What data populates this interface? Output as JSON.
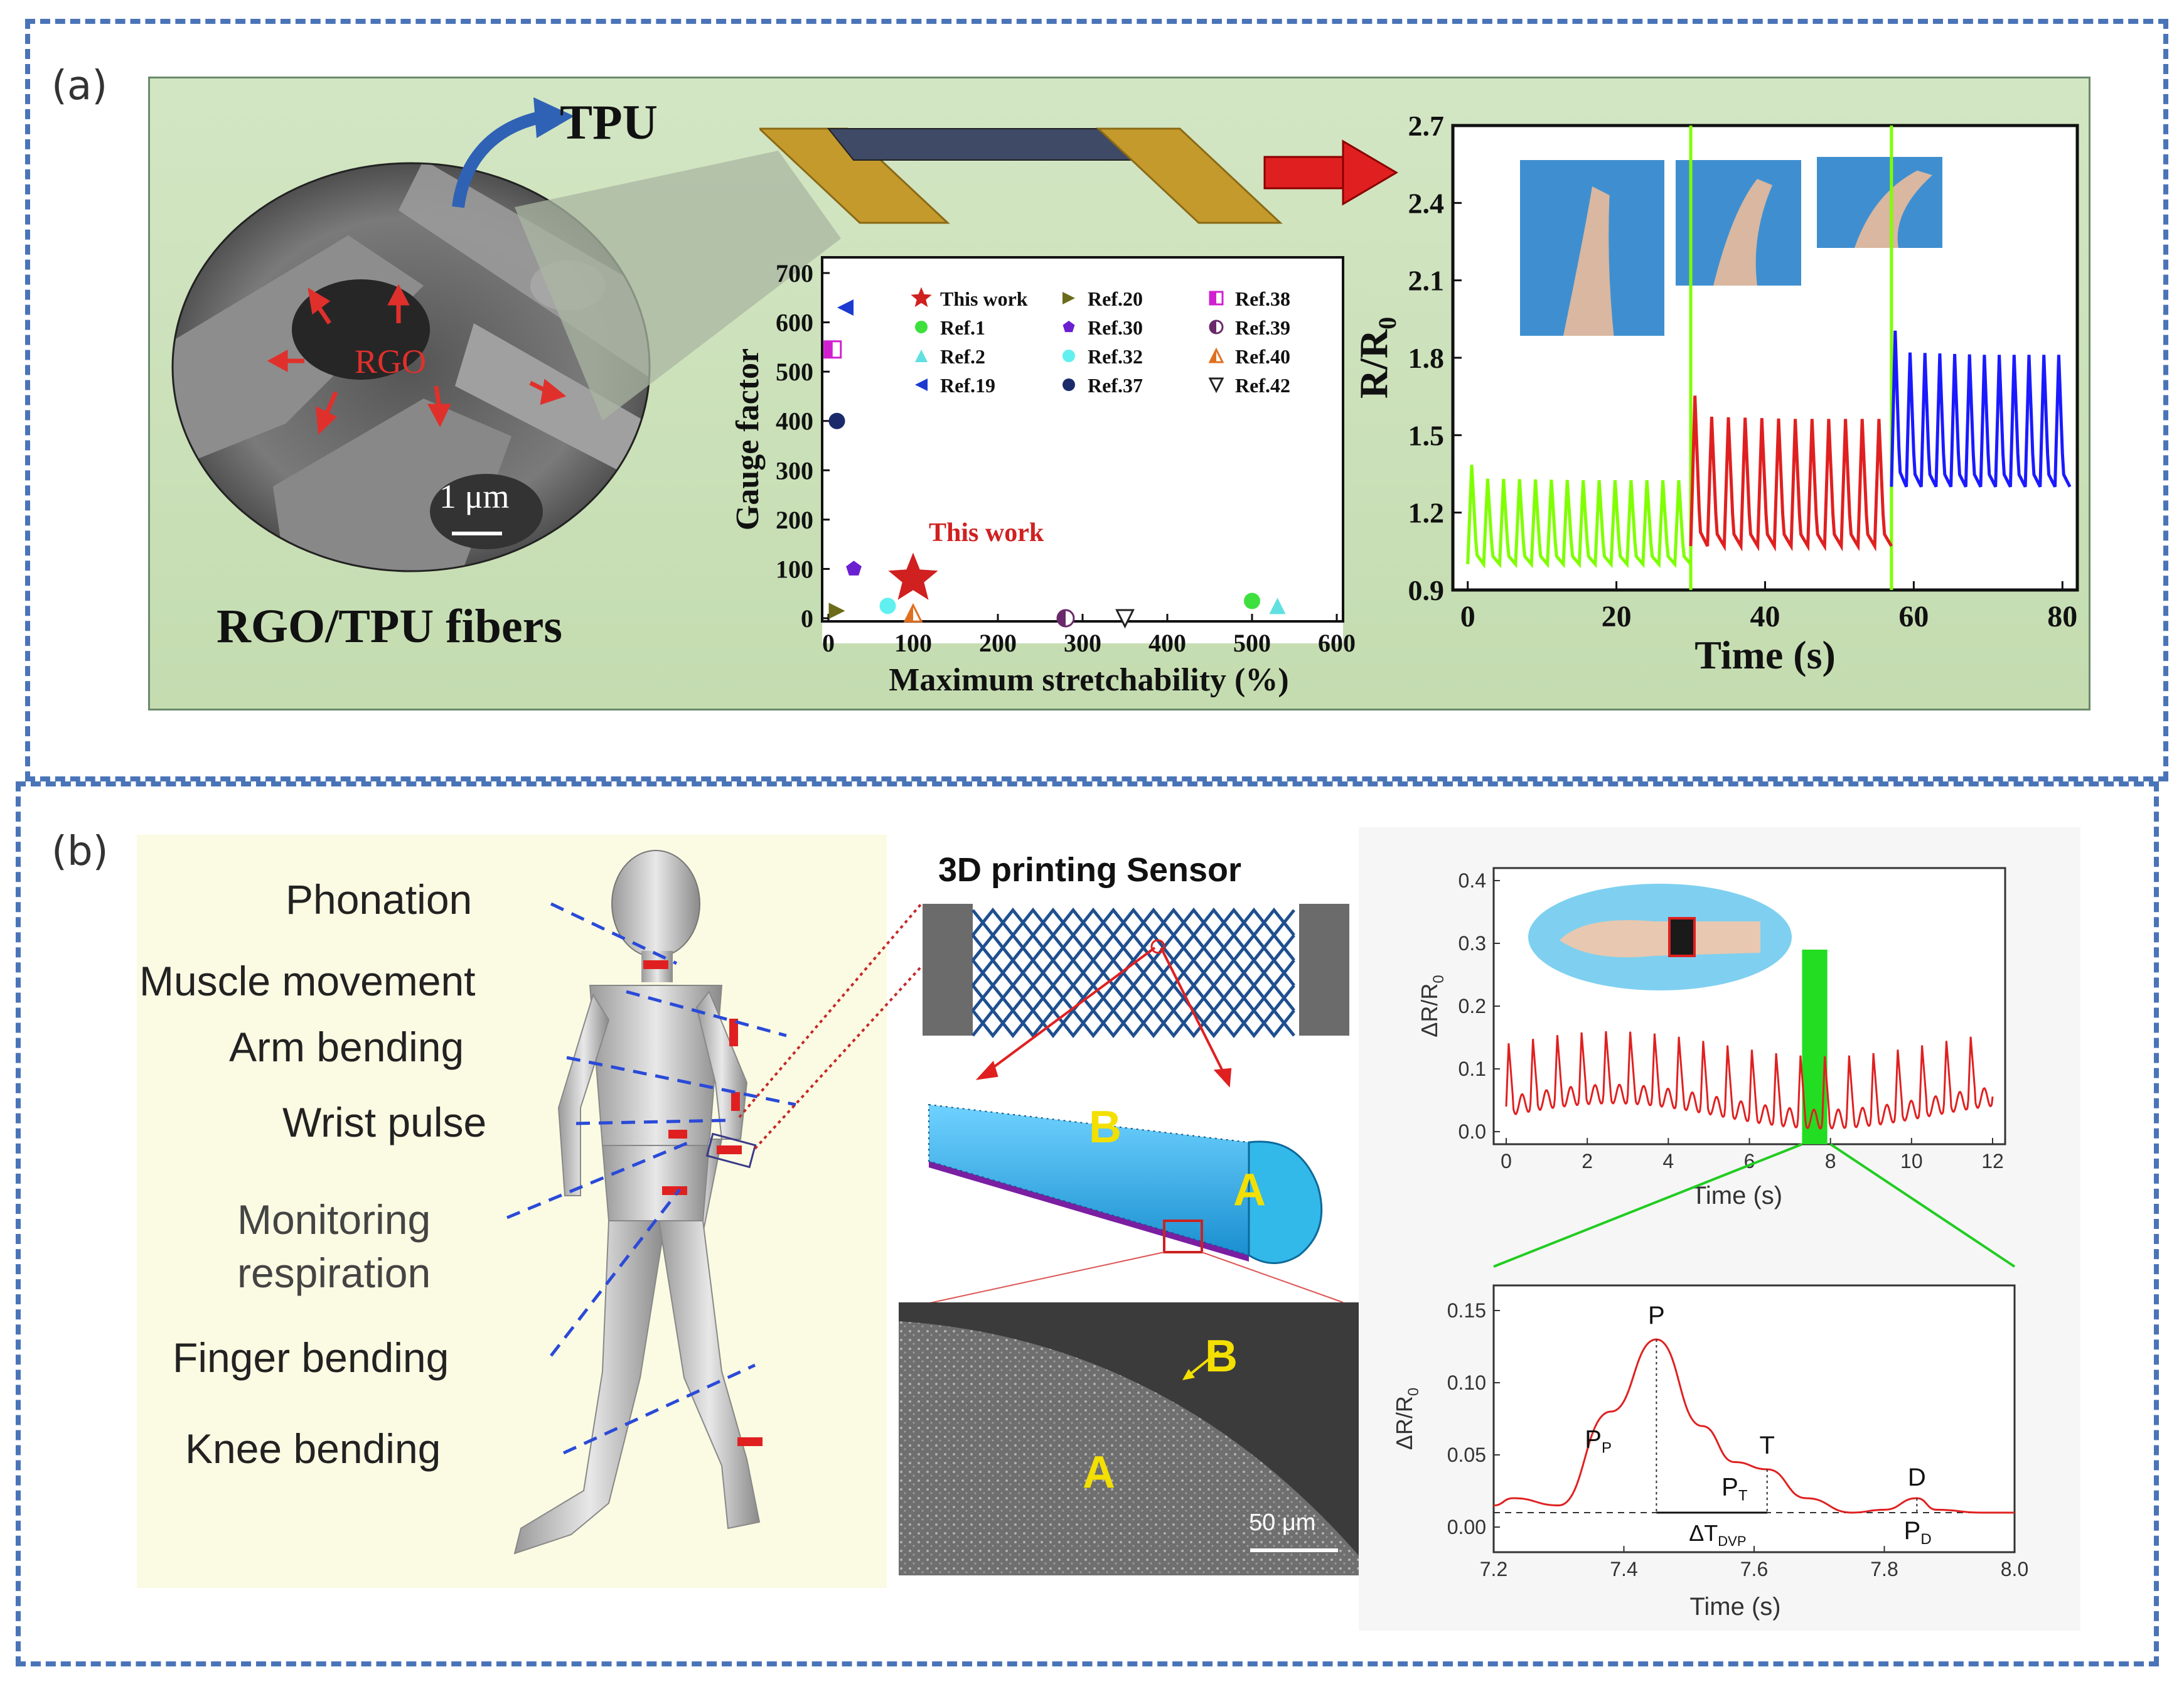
{
  "panels": {
    "a": {
      "label": "(a)",
      "sem": {
        "tpu_label": "TPU",
        "rgo_label": "RGO",
        "scale_label": "1 μm",
        "caption": "RGO/TPU fibers"
      },
      "gauge_chart": {
        "ylabel": "Gauge factor",
        "xlabel": "Maximum stretchability (%)",
        "xticks": [
          "0",
          "100",
          "200",
          "300",
          "400",
          "500",
          "600"
        ],
        "yticks": [
          "0",
          "100",
          "200",
          "300",
          "400",
          "500",
          "600",
          "700"
        ],
        "annotation": "This work",
        "legend": [
          "This work",
          "Ref.20",
          "Ref.38",
          "Ref.1",
          "Ref.30",
          "Ref.39",
          "Ref.2",
          "Ref.32",
          "Ref.40",
          "Ref.19",
          "Ref.37",
          "Ref.42"
        ]
      },
      "resistance_chart": {
        "ylabel": "R/R",
        "ylabel_sub": "0",
        "xlabel": "Time (s)",
        "xticks": [
          "0",
          "20",
          "40",
          "60",
          "80"
        ],
        "yticks": [
          "0.9",
          "1.2",
          "1.5",
          "1.8",
          "2.1",
          "2.4",
          "2.7"
        ]
      }
    },
    "b": {
      "label": "(b)",
      "body_labels": {
        "phonation": "Phonation",
        "muscle": "Muscle movement",
        "arm": "Arm bending",
        "wrist": "Wrist pulse",
        "monitoring1": "Monitoring",
        "monitoring2": "respiration",
        "finger": "Finger bending",
        "knee": "Knee bending"
      },
      "sensor": {
        "title": "3D printing Sensor",
        "label_a": "A",
        "label_b": "B",
        "scale": "50 μm"
      },
      "pulse_chart": {
        "ylabel": "ΔR/R",
        "ylabel_sub": "0",
        "xlabel": "Time (s)",
        "xticks": [
          "0",
          "2",
          "4",
          "6",
          "8",
          "10",
          "12"
        ],
        "yticks": [
          "0.0",
          "0.1",
          "0.2",
          "0.3",
          "0.4"
        ]
      },
      "zoom_chart": {
        "ylabel": "ΔR/R",
        "ylabel_sub": "0",
        "xlabel": "Time (s)",
        "xticks": [
          "7.2",
          "7.4",
          "7.6",
          "7.8",
          "8.0"
        ],
        "yticks": [
          "0.00",
          "0.05",
          "0.10",
          "0.15"
        ],
        "peak_labels": {
          "p": "P",
          "pp": "P",
          "pp_sub": "P",
          "t": "T",
          "pt": "P",
          "pt_sub": "T",
          "d": "D",
          "pd": "P",
          "pd_sub": "D",
          "dt": "ΔT",
          "dt_sub": "DVP"
        }
      }
    }
  },
  "chart_data": [
    {
      "type": "scatter",
      "xlabel": "Maximum stretchability (%)",
      "ylabel": "Gauge factor",
      "xlim": [
        0,
        600
      ],
      "ylim": [
        0,
        700
      ],
      "series": [
        {
          "name": "This work",
          "x": [
            100
          ],
          "y": [
            80
          ]
        },
        {
          "name": "Ref.20",
          "x": [
            10
          ],
          "y": [
            15
          ]
        },
        {
          "name": "Ref.38",
          "x": [
            5
          ],
          "y": [
            545
          ]
        },
        {
          "name": "Ref.1",
          "x": [
            500
          ],
          "y": [
            35
          ]
        },
        {
          "name": "Ref.30",
          "x": [
            30
          ],
          "y": [
            100
          ]
        },
        {
          "name": "Ref.39",
          "x": [
            280
          ],
          "y": [
            0
          ]
        },
        {
          "name": "Ref.2",
          "x": [
            530
          ],
          "y": [
            25
          ]
        },
        {
          "name": "Ref.32",
          "x": [
            70
          ],
          "y": [
            25
          ]
        },
        {
          "name": "Ref.40",
          "x": [
            100
          ],
          "y": [
            10
          ]
        },
        {
          "name": "Ref.19",
          "x": [
            20
          ],
          "y": [
            630
          ]
        },
        {
          "name": "Ref.37",
          "x": [
            10
          ],
          "y": [
            400
          ]
        },
        {
          "name": "Ref.42",
          "x": [
            350
          ],
          "y": [
            0
          ]
        }
      ]
    },
    {
      "type": "line",
      "xlabel": "Time (s)",
      "ylabel": "R/R0",
      "xlim": [
        -2,
        82
      ],
      "ylim": [
        0.9,
        2.7
      ],
      "series": [
        {
          "name": "",
          "segment": [
            0,
            30
          ],
          "baseline": 1.0,
          "peak": 1.35,
          "cycles": 14,
          "color": "#7fff00"
        },
        {
          "name": "",
          "segment": [
            30,
            57
          ],
          "baseline": 1.07,
          "peak": 1.6,
          "cycles": 12,
          "color": "#e02020"
        },
        {
          "name": "",
          "segment": [
            57,
            81
          ],
          "baseline": 1.3,
          "peak": 1.85,
          "cycles": 12,
          "color": "#1a1aff"
        }
      ]
    },
    {
      "type": "line",
      "xlabel": "Time (s)",
      "ylabel": "ΔR/R0",
      "xlim": [
        0,
        12
      ],
      "ylim": [
        0,
        0.4
      ],
      "series": [
        {
          "name": "",
          "beats": 20,
          "baseline": 0.04,
          "peak": 0.14,
          "color": "#e02020"
        }
      ]
    },
    {
      "type": "line",
      "xlabel": "Time (s)",
      "ylabel": "ΔR/R0",
      "xlim": [
        7.2,
        8.0
      ],
      "ylim": [
        0,
        0.15
      ],
      "series": [
        {
          "name": "",
          "x": [
            7.2,
            7.23,
            7.3,
            7.38,
            7.45,
            7.52,
            7.57,
            7.62,
            7.68,
            7.75,
            7.8,
            7.85,
            7.88,
            7.95,
            8.0
          ],
          "y": [
            0.015,
            0.02,
            0.015,
            0.08,
            0.13,
            0.07,
            0.045,
            0.04,
            0.02,
            0.01,
            0.012,
            0.02,
            0.012,
            0.01,
            0.01
          ],
          "color": "#e02020"
        }
      ]
    }
  ]
}
